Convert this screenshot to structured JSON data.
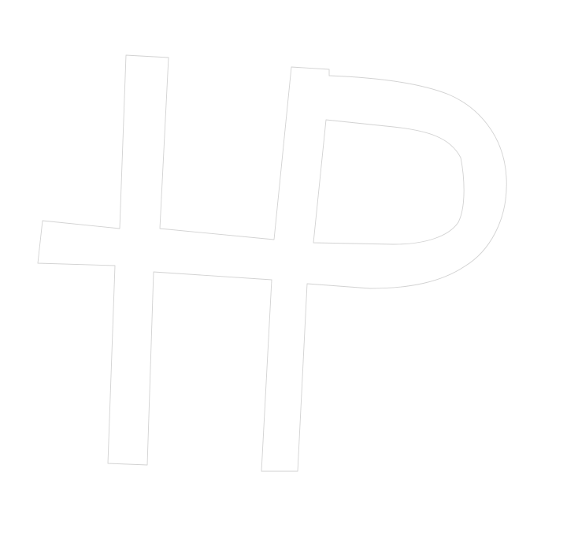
{
  "logo": {
    "monogram_letters": "HP",
    "fill_color": "#ffffff",
    "outline_color": "#d2d2d2",
    "background_color": "#ffffff"
  }
}
